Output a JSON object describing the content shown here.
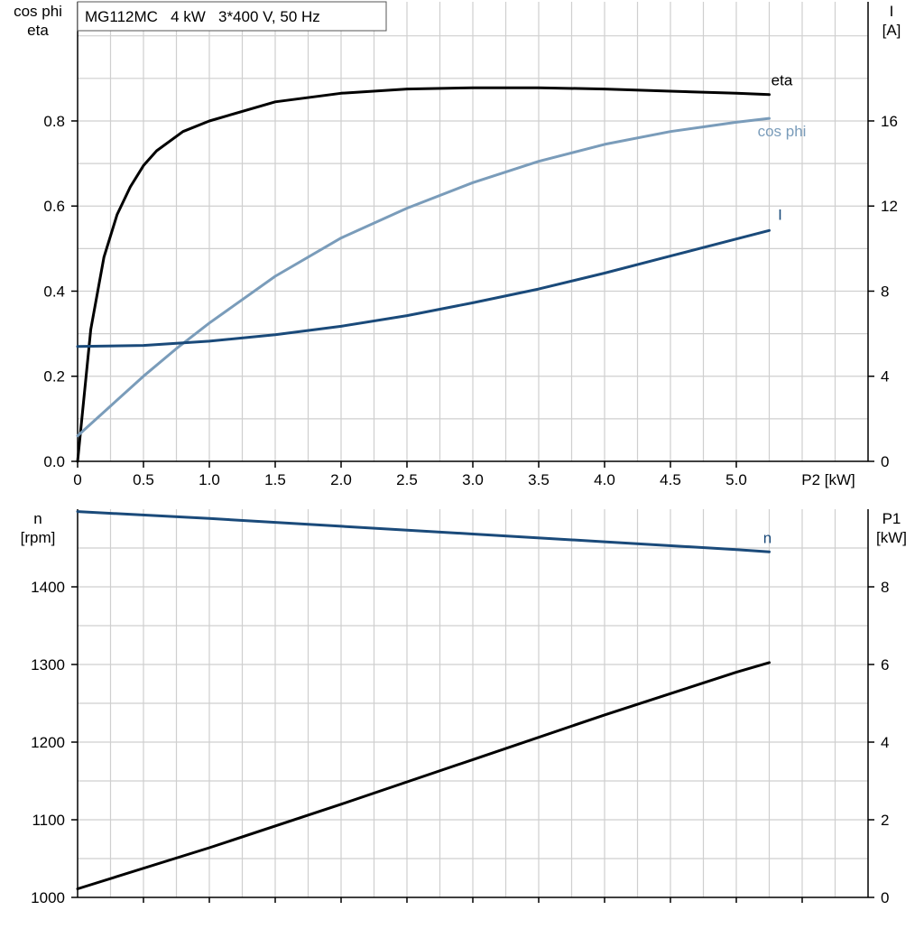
{
  "chart_data": [
    {
      "type": "line",
      "title": "MG112MC   4 kW   3*400 V, 50 Hz",
      "xlabel": "P2 [kW]",
      "ylabel_left": [
        "cos phi",
        "eta"
      ],
      "ylabel_right": [
        "I",
        "[A]"
      ],
      "xlim": [
        0,
        6.0
      ],
      "ylim_left": [
        0,
        1.08
      ],
      "ylim_right": [
        0,
        21.6
      ],
      "x_ticks": [
        "0",
        "0.5",
        "1.0",
        "1.5",
        "2.0",
        "2.5",
        "3.0",
        "3.5",
        "4.0",
        "4.5",
        "5.0"
      ],
      "y_left_ticks": [
        "0.0",
        "0.2",
        "0.4",
        "0.6",
        "0.8"
      ],
      "y_right_ticks": [
        "0",
        "4",
        "8",
        "12",
        "16"
      ],
      "grid": true,
      "series": [
        {
          "name": "eta",
          "axis": "left",
          "color": "#000000",
          "x": [
            0,
            0.1,
            0.2,
            0.3,
            0.4,
            0.5,
            0.6,
            0.8,
            1.0,
            1.5,
            2.0,
            2.5,
            3.0,
            3.5,
            4.0,
            4.5,
            5.0,
            5.25
          ],
          "y": [
            0.0,
            0.31,
            0.48,
            0.58,
            0.645,
            0.695,
            0.73,
            0.775,
            0.8,
            0.845,
            0.865,
            0.875,
            0.878,
            0.878,
            0.875,
            0.87,
            0.865,
            0.862
          ]
        },
        {
          "name": "cos phi",
          "axis": "left",
          "color": "#7a9cba",
          "x": [
            0,
            0.25,
            0.5,
            0.75,
            1.0,
            1.5,
            2.0,
            2.5,
            3.0,
            3.5,
            4.0,
            4.5,
            5.0,
            5.25
          ],
          "y": [
            0.06,
            0.13,
            0.2,
            0.265,
            0.325,
            0.435,
            0.525,
            0.595,
            0.655,
            0.705,
            0.745,
            0.775,
            0.797,
            0.806
          ]
        },
        {
          "name": "I",
          "axis": "right",
          "color": "#1a4a7a",
          "x": [
            0,
            0.5,
            1.0,
            1.5,
            2.0,
            2.5,
            3.0,
            3.5,
            4.0,
            4.5,
            5.0,
            5.25
          ],
          "y": [
            5.4,
            5.45,
            5.65,
            5.95,
            6.35,
            6.85,
            7.45,
            8.1,
            8.85,
            9.65,
            10.45,
            10.85
          ]
        }
      ]
    },
    {
      "type": "line",
      "xlabel": "",
      "ylabel_left": [
        "n",
        "[rpm]"
      ],
      "ylabel_right": [
        "P1",
        "[kW]"
      ],
      "xlim": [
        0,
        6.0
      ],
      "ylim_left": [
        1000,
        1500
      ],
      "ylim_right": [
        0,
        10
      ],
      "y_left_ticks": [
        "1000",
        "1100",
        "1200",
        "1300",
        "1400"
      ],
      "y_right_ticks": [
        "0",
        "2",
        "4",
        "6",
        "8"
      ],
      "grid": true,
      "series": [
        {
          "name": "n",
          "axis": "left",
          "color": "#1a4a7a",
          "x": [
            0,
            1.0,
            2.0,
            3.0,
            4.0,
            5.0,
            5.25
          ],
          "y": [
            1497,
            1488,
            1478,
            1468,
            1458,
            1448,
            1445
          ]
        },
        {
          "name": "",
          "axis": "right",
          "color": "#000000",
          "x": [
            0,
            1.0,
            2.0,
            3.0,
            4.0,
            5.0,
            5.25
          ],
          "y": [
            0.22,
            1.28,
            2.4,
            3.55,
            4.7,
            5.8,
            6.05
          ]
        }
      ]
    }
  ]
}
